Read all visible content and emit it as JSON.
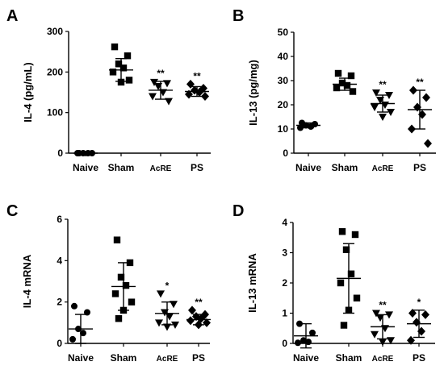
{
  "chart_data": [
    {
      "type": "scatter",
      "panel": "A",
      "ylabel": "IL-4 (pg/mL)",
      "ylim": [
        0,
        300
      ],
      "yticks": [
        0,
        100,
        200,
        300
      ],
      "categories": [
        "Naive",
        "Sham",
        "AcRE",
        "PS"
      ],
      "marker_shapes": [
        "circle",
        "square",
        "triangle-down",
        "diamond"
      ],
      "groups": [
        {
          "category": "Naive",
          "points": [
            0,
            0,
            0,
            0,
            0
          ],
          "mean": 0,
          "sd": 0,
          "sig": ""
        },
        {
          "category": "Sham",
          "points": [
            262,
            240,
            220,
            210,
            200,
            180,
            175
          ],
          "mean": 205,
          "sd": 28,
          "sig": ""
        },
        {
          "category": "AcRE",
          "points": [
            175,
            172,
            165,
            150,
            140,
            128
          ],
          "mean": 155,
          "sd": 22,
          "sig": "**"
        },
        {
          "category": "PS",
          "points": [
            170,
            160,
            155,
            150,
            145,
            140
          ],
          "mean": 152,
          "sd": 12,
          "sig": "**"
        }
      ]
    },
    {
      "type": "scatter",
      "panel": "B",
      "ylabel": "IL-13 (pg/mg)",
      "ylim": [
        0,
        50
      ],
      "yticks": [
        0,
        10,
        20,
        30,
        40,
        50
      ],
      "categories": [
        "Naive",
        "Sham",
        "AcRE",
        "PS"
      ],
      "marker_shapes": [
        "circle",
        "square",
        "triangle-down",
        "diamond"
      ],
      "groups": [
        {
          "category": "Naive",
          "points": [
            12.5,
            12,
            11.5,
            11,
            10.5
          ],
          "mean": 11.5,
          "sd": 1.0,
          "sig": ""
        },
        {
          "category": "Sham",
          "points": [
            33,
            32,
            29,
            28,
            27,
            25.5
          ],
          "mean": 28.5,
          "sd": 2.5,
          "sig": ""
        },
        {
          "category": "AcRE",
          "points": [
            25,
            24,
            22,
            20,
            19,
            17,
            15
          ],
          "mean": 20.5,
          "sd": 3.5,
          "sig": "**"
        },
        {
          "category": "PS",
          "points": [
            26,
            23,
            19,
            16,
            10,
            4
          ],
          "mean": 18,
          "sd": 8,
          "sig": "**"
        }
      ]
    },
    {
      "type": "scatter",
      "panel": "C",
      "ylabel": "IL-4 mRNA",
      "ylim": [
        0,
        6
      ],
      "yticks": [
        0,
        2,
        4,
        6
      ],
      "categories": [
        "Naive",
        "Sham",
        "AcRE",
        "PS"
      ],
      "marker_shapes": [
        "circle",
        "square",
        "triangle-down",
        "diamond"
      ],
      "groups": [
        {
          "category": "Naive",
          "points": [
            1.8,
            1.5,
            0.7,
            0.5,
            0.2
          ],
          "mean": 0.7,
          "sd": 0.7,
          "sig": ""
        },
        {
          "category": "Sham",
          "points": [
            5.0,
            3.9,
            3.2,
            2.8,
            2.4,
            2.0,
            1.6,
            1.2
          ],
          "mean": 2.75,
          "sd": 1.15,
          "sig": ""
        },
        {
          "category": "AcRE",
          "points": [
            2.4,
            1.9,
            1.5,
            1.3,
            1.0,
            0.9,
            0.8
          ],
          "mean": 1.45,
          "sd": 0.55,
          "sig": "*"
        },
        {
          "category": "PS",
          "points": [
            1.6,
            1.4,
            1.3,
            1.2,
            1.1,
            1.0,
            0.9
          ],
          "mean": 1.15,
          "sd": 0.25,
          "sig": "**"
        }
      ]
    },
    {
      "type": "scatter",
      "panel": "D",
      "ylabel": "IL-13 mRNA",
      "ylim": [
        0,
        4
      ],
      "yticks": [
        0,
        1,
        2,
        3,
        4
      ],
      "categories": [
        "Naive",
        "Sham",
        "AcRE",
        "PS"
      ],
      "marker_shapes": [
        "circle",
        "square",
        "triangle-down",
        "diamond"
      ],
      "groups": [
        {
          "category": "Naive",
          "points": [
            0.65,
            0.35,
            0.1,
            0.05,
            0.02
          ],
          "mean": 0.25,
          "sd": 0.4,
          "sig": ""
        },
        {
          "category": "Sham",
          "points": [
            3.7,
            3.6,
            3.1,
            2.3,
            2.0,
            1.5,
            1.1,
            0.6
          ],
          "mean": 2.15,
          "sd": 1.15,
          "sig": ""
        },
        {
          "category": "AcRE",
          "points": [
            1.0,
            0.95,
            0.85,
            0.5,
            0.3,
            0.1,
            0.05
          ],
          "mean": 0.55,
          "sd": 0.4,
          "sig": "**"
        },
        {
          "category": "PS",
          "points": [
            1.0,
            0.95,
            0.7,
            0.4,
            0.1
          ],
          "mean": 0.65,
          "sd": 0.45,
          "sig": "*"
        }
      ]
    }
  ]
}
